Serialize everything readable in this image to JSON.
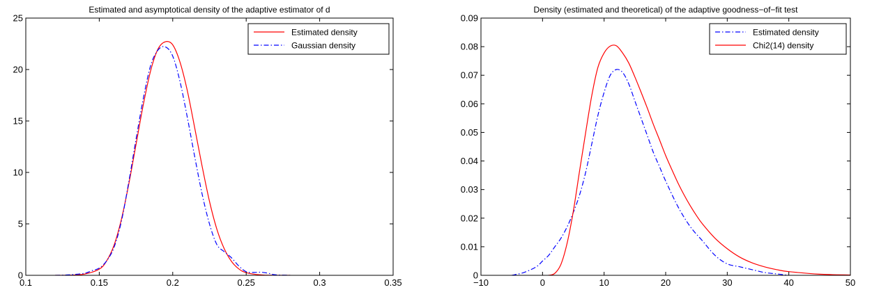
{
  "chart_data": [
    {
      "type": "line",
      "title": "Estimated and asymptotical density of the adaptive estimator of d",
      "xlabel": "",
      "ylabel": "",
      "xlim": [
        0.1,
        0.35
      ],
      "ylim": [
        0,
        25
      ],
      "xticks": [
        "0.1",
        "0.15",
        "0.2",
        "0.25",
        "0.3",
        "0.35"
      ],
      "yticks": [
        "0",
        "5",
        "10",
        "15",
        "20",
        "25"
      ],
      "legend_position": "top-right",
      "series": [
        {
          "name": "Estimated density",
          "color": "#ff0000",
          "style": "solid",
          "x": [
            0.12,
            0.13,
            0.14,
            0.15,
            0.155,
            0.16,
            0.165,
            0.17,
            0.175,
            0.18,
            0.185,
            0.19,
            0.195,
            0.2,
            0.205,
            0.21,
            0.215,
            0.22,
            0.225,
            0.23,
            0.235,
            0.24,
            0.245,
            0.25,
            0.26,
            0.27,
            0.28
          ],
          "y": [
            0,
            0.02,
            0.12,
            0.6,
            1.4,
            2.9,
            5.4,
            8.8,
            12.7,
            16.6,
            19.9,
            22.0,
            22.7,
            22.4,
            20.7,
            17.9,
            14.3,
            10.6,
            7.2,
            4.5,
            2.6,
            1.35,
            0.62,
            0.26,
            0.04,
            0.005,
            0
          ]
        },
        {
          "name": "Gaussian density",
          "color": "#0000ff",
          "style": "dashdot",
          "x": [
            0.12,
            0.13,
            0.14,
            0.145,
            0.15,
            0.155,
            0.16,
            0.165,
            0.17,
            0.175,
            0.18,
            0.185,
            0.19,
            0.195,
            0.2,
            0.205,
            0.21,
            0.215,
            0.22,
            0.225,
            0.23,
            0.235,
            0.24,
            0.245,
            0.25,
            0.255,
            0.26,
            0.265,
            0.27,
            0.28
          ],
          "y": [
            0,
            0.05,
            0.2,
            0.45,
            0.7,
            1.4,
            2.7,
            5.2,
            9.0,
            13.2,
            17.2,
            20.4,
            21.9,
            22.2,
            21.3,
            18.8,
            15.3,
            11.5,
            7.9,
            5.0,
            3.0,
            2.3,
            1.7,
            0.9,
            0.35,
            0.28,
            0.3,
            0.2,
            0.05,
            0
          ]
        }
      ]
    },
    {
      "type": "line",
      "title": "Density (estimated and theoretical) of the adaptive goodness−of−fit test",
      "xlabel": "",
      "ylabel": "",
      "xlim": [
        -10,
        50
      ],
      "ylim": [
        0,
        0.09
      ],
      "xticks": [
        "−10",
        "0",
        "10",
        "20",
        "30",
        "40",
        "50"
      ],
      "yticks": [
        "0",
        "0.01",
        "0.02",
        "0.03",
        "0.04",
        "0.05",
        "0.06",
        "0.07",
        "0.08",
        "0.09"
      ],
      "legend_position": "top-right",
      "series": [
        {
          "name": "Estimated density",
          "color": "#0000ff",
          "style": "dashdot",
          "x": [
            -5,
            -3,
            -1,
            0,
            1,
            2,
            3,
            4,
            5,
            6,
            7,
            8,
            9,
            10,
            11,
            12,
            13,
            14,
            15,
            16,
            17,
            18,
            19,
            20,
            22,
            24,
            26,
            28,
            30,
            32,
            34,
            36,
            38,
            40
          ],
          "y": [
            0,
            0.001,
            0.003,
            0.005,
            0.007,
            0.01,
            0.013,
            0.017,
            0.022,
            0.028,
            0.036,
            0.046,
            0.056,
            0.064,
            0.07,
            0.072,
            0.071,
            0.067,
            0.061,
            0.055,
            0.049,
            0.043,
            0.038,
            0.033,
            0.024,
            0.017,
            0.012,
            0.007,
            0.004,
            0.003,
            0.002,
            0.001,
            0.0005,
            0
          ]
        },
        {
          "name": "Chi2(14) density",
          "color": "#ff0000",
          "style": "solid",
          "x": [
            0,
            1,
            2,
            3,
            4,
            5,
            6,
            7,
            8,
            9,
            10,
            11,
            12,
            13,
            14,
            15,
            16,
            17,
            18,
            19,
            20,
            21,
            22,
            23,
            24,
            25,
            26,
            28,
            30,
            32,
            34,
            36,
            38,
            40,
            45,
            50
          ],
          "y": [
            0,
            2e-05,
            0.0007,
            0.0039,
            0.0113,
            0.0224,
            0.0363,
            0.0499,
            0.0629,
            0.0728,
            0.0778,
            0.0802,
            0.0803,
            0.0778,
            0.0743,
            0.0694,
            0.0641,
            0.0586,
            0.0528,
            0.0474,
            0.0419,
            0.037,
            0.0323,
            0.0281,
            0.0243,
            0.0209,
            0.0179,
            0.013,
            0.0093,
            0.0064,
            0.0044,
            0.003,
            0.002,
            0.0013,
            0.0004,
            0.0001
          ]
        }
      ]
    }
  ]
}
